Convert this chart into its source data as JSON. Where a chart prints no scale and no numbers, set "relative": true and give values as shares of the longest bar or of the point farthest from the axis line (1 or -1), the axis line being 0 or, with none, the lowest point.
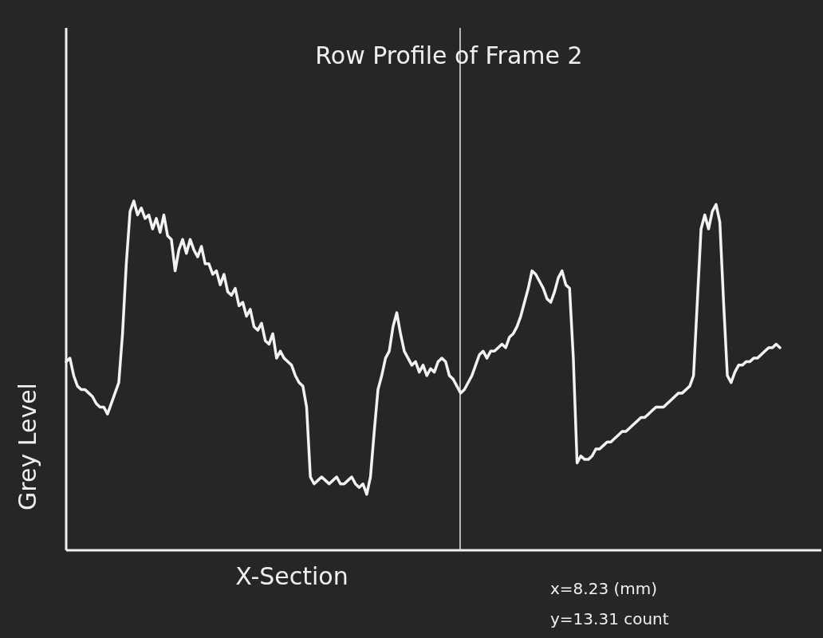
{
  "chart_data": {
    "type": "line",
    "title": "Row Profile of Frame 2",
    "xlabel": "X-Section",
    "ylabel": "Grey Level",
    "relative": true,
    "annotations": [
      "x=8.23 (mm)",
      "y=13.31 count"
    ],
    "categories": [
      null,
      null,
      null,
      null,
      null,
      null,
      null,
      null,
      null,
      null,
      null,
      null,
      null,
      null,
      null,
      null,
      null,
      null,
      null,
      null,
      null,
      null,
      null,
      null,
      null,
      null,
      null,
      null,
      null,
      null,
      null,
      null,
      null,
      null,
      null,
      null,
      null,
      null,
      null,
      null,
      null,
      null,
      null,
      null,
      null,
      null,
      null,
      null,
      null,
      null,
      null,
      null,
      null,
      null,
      null,
      null,
      null,
      null,
      null,
      null,
      null,
      null,
      null,
      null,
      null,
      null,
      null,
      null,
      null,
      null,
      null,
      null,
      null,
      null,
      null,
      null,
      null,
      null,
      null,
      null,
      null,
      null,
      null,
      null,
      null,
      null,
      null,
      null,
      null,
      null,
      null,
      null,
      null,
      null,
      null,
      null,
      null,
      null,
      null,
      null,
      null,
      null,
      null,
      null,
      null,
      null,
      null,
      null,
      null,
      null,
      null,
      null,
      null,
      null,
      null,
      null,
      null,
      null,
      null,
      null,
      null,
      null,
      null,
      null,
      null,
      null,
      null,
      null,
      null,
      null,
      null,
      null,
      null,
      null,
      null,
      null,
      null,
      null,
      null,
      null,
      null,
      null,
      null,
      null,
      null,
      null,
      null,
      null,
      null,
      null,
      null,
      null,
      null,
      null,
      null,
      null,
      null,
      null,
      null,
      null,
      null,
      null,
      null,
      null,
      null,
      null,
      null,
      null,
      null,
      null,
      null,
      null,
      null,
      null,
      null,
      null,
      null,
      null,
      null,
      null,
      null,
      null,
      null,
      null,
      null,
      null,
      null,
      null,
      null,
      null,
      null
    ],
    "series": [
      {
        "color": "#f2f2f2",
        "values": [
          0.54,
          0.55,
          0.5,
          0.47,
          0.46,
          0.46,
          0.45,
          0.44,
          0.42,
          0.41,
          0.41,
          0.39,
          0.42,
          0.45,
          0.48,
          0.62,
          0.82,
          0.97,
          1.0,
          0.96,
          0.98,
          0.95,
          0.96,
          0.92,
          0.95,
          0.91,
          0.96,
          0.9,
          0.89,
          0.8,
          0.86,
          0.89,
          0.85,
          0.89,
          0.86,
          0.84,
          0.87,
          0.82,
          0.82,
          0.79,
          0.8,
          0.76,
          0.79,
          0.74,
          0.73,
          0.75,
          0.7,
          0.71,
          0.67,
          0.69,
          0.64,
          0.63,
          0.65,
          0.6,
          0.59,
          0.62,
          0.55,
          0.57,
          0.55,
          0.54,
          0.53,
          0.5,
          0.48,
          0.47,
          0.41,
          0.21,
          0.19,
          0.2,
          0.21,
          0.2,
          0.19,
          0.2,
          0.21,
          0.19,
          0.19,
          0.2,
          0.21,
          0.19,
          0.18,
          0.19,
          0.16,
          0.21,
          0.34,
          0.46,
          0.5,
          0.55,
          0.57,
          0.64,
          0.68,
          0.62,
          0.57,
          0.55,
          0.53,
          0.54,
          0.51,
          0.53,
          0.5,
          0.52,
          0.51,
          0.54,
          0.55,
          0.54,
          0.5,
          0.49,
          0.47,
          0.45,
          0.46,
          0.48,
          0.5,
          0.53,
          0.56,
          0.57,
          0.55,
          0.57,
          0.57,
          0.58,
          0.59,
          0.58,
          0.61,
          0.62,
          0.64,
          0.67,
          0.71,
          0.75,
          0.8,
          0.79,
          0.77,
          0.75,
          0.72,
          0.71,
          0.74,
          0.78,
          0.8,
          0.76,
          0.75,
          0.55,
          0.25,
          0.27,
          0.26,
          0.26,
          0.27,
          0.29,
          0.29,
          0.3,
          0.31,
          0.31,
          0.32,
          0.33,
          0.34,
          0.34,
          0.35,
          0.36,
          0.37,
          0.38,
          0.38,
          0.39,
          0.4,
          0.41,
          0.41,
          0.41,
          0.42,
          0.43,
          0.44,
          0.45,
          0.45,
          0.46,
          0.47,
          0.5,
          0.71,
          0.92,
          0.96,
          0.92,
          0.97,
          0.99,
          0.94,
          0.71,
          0.5,
          0.48,
          0.51,
          0.53,
          0.53,
          0.54,
          0.54,
          0.55,
          0.55,
          0.56,
          0.57,
          0.58,
          0.58,
          0.59,
          0.58
        ]
      }
    ]
  }
}
